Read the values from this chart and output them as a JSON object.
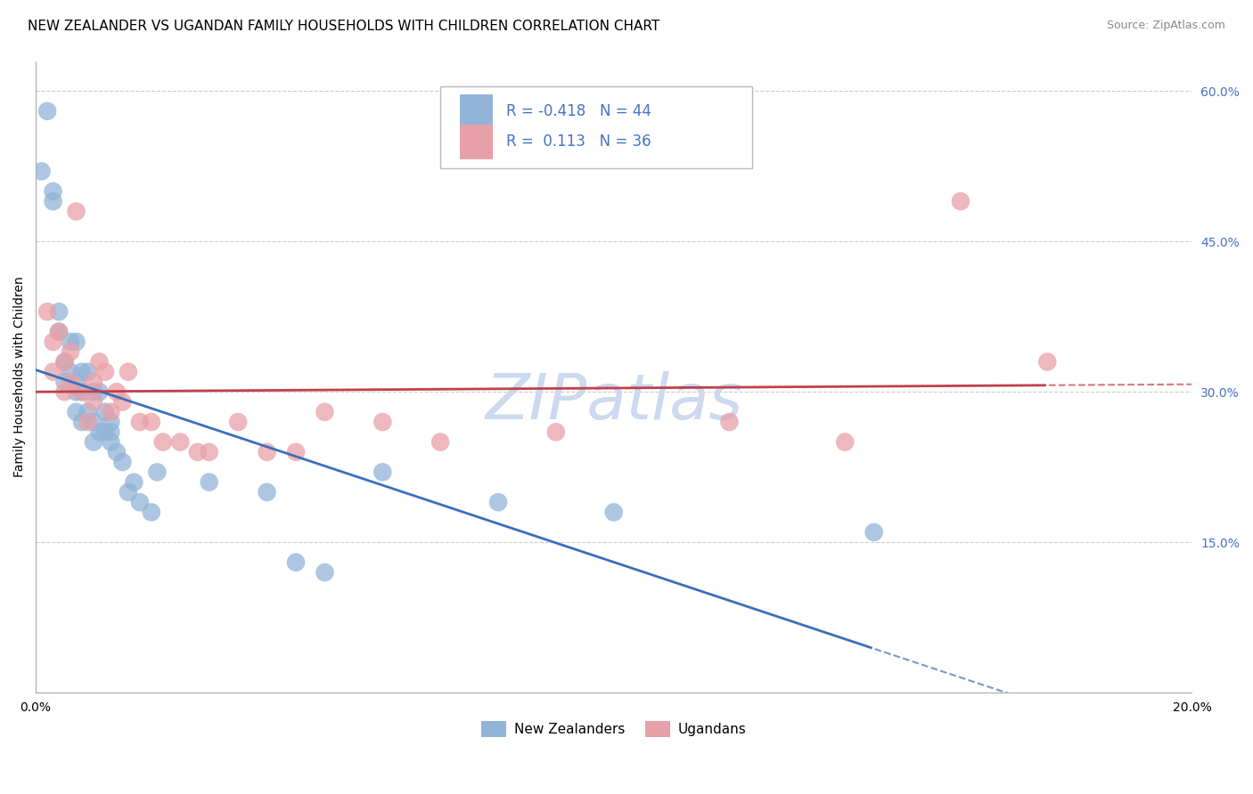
{
  "title": "NEW ZEALANDER VS UGANDAN FAMILY HOUSEHOLDS WITH CHILDREN CORRELATION CHART",
  "source": "Source: ZipAtlas.com",
  "ylabel": "Family Households with Children",
  "legend_labels": [
    "New Zealanders",
    "Ugandans"
  ],
  "r_nz": -0.418,
  "n_nz": 44,
  "r_ug": 0.113,
  "n_ug": 36,
  "color_nz": "#92b4d8",
  "color_ug": "#e8a0a8",
  "color_trend_nz": "#3a6fba",
  "color_trend_ug": "#c0404a",
  "color_axis_right": "#4472c4",
  "xlim": [
    0.0,
    0.2
  ],
  "ylim": [
    0.0,
    0.63
  ],
  "xticks": [
    0.0,
    0.025,
    0.05,
    0.075,
    0.1,
    0.125,
    0.15,
    0.175,
    0.2
  ],
  "yticks_right": [
    0.15,
    0.3,
    0.45,
    0.6
  ],
  "ytick_right_labels": [
    "15.0%",
    "30.0%",
    "45.0%",
    "60.0%"
  ],
  "nz_x": [
    0.001,
    0.002,
    0.003,
    0.003,
    0.004,
    0.004,
    0.005,
    0.005,
    0.006,
    0.006,
    0.007,
    0.007,
    0.007,
    0.007,
    0.008,
    0.008,
    0.008,
    0.009,
    0.009,
    0.01,
    0.01,
    0.01,
    0.011,
    0.011,
    0.012,
    0.012,
    0.013,
    0.013,
    0.013,
    0.014,
    0.015,
    0.016,
    0.017,
    0.018,
    0.02,
    0.021,
    0.03,
    0.04,
    0.045,
    0.05,
    0.06,
    0.08,
    0.1,
    0.145
  ],
  "nz_y": [
    0.52,
    0.58,
    0.49,
    0.5,
    0.38,
    0.36,
    0.33,
    0.31,
    0.35,
    0.32,
    0.35,
    0.31,
    0.3,
    0.28,
    0.32,
    0.3,
    0.27,
    0.32,
    0.28,
    0.3,
    0.27,
    0.25,
    0.3,
    0.26,
    0.28,
    0.26,
    0.27,
    0.26,
    0.25,
    0.24,
    0.23,
    0.2,
    0.21,
    0.19,
    0.18,
    0.22,
    0.21,
    0.2,
    0.13,
    0.12,
    0.22,
    0.19,
    0.18,
    0.16
  ],
  "ug_x": [
    0.002,
    0.003,
    0.003,
    0.004,
    0.005,
    0.005,
    0.006,
    0.006,
    0.007,
    0.008,
    0.009,
    0.01,
    0.01,
    0.011,
    0.012,
    0.013,
    0.014,
    0.015,
    0.016,
    0.018,
    0.02,
    0.022,
    0.025,
    0.028,
    0.03,
    0.035,
    0.04,
    0.045,
    0.05,
    0.06,
    0.07,
    0.09,
    0.12,
    0.14,
    0.16,
    0.175
  ],
  "ug_y": [
    0.38,
    0.35,
    0.32,
    0.36,
    0.33,
    0.3,
    0.34,
    0.31,
    0.48,
    0.3,
    0.27,
    0.31,
    0.29,
    0.33,
    0.32,
    0.28,
    0.3,
    0.29,
    0.32,
    0.27,
    0.27,
    0.25,
    0.25,
    0.24,
    0.24,
    0.27,
    0.24,
    0.24,
    0.28,
    0.27,
    0.25,
    0.26,
    0.27,
    0.25,
    0.49,
    0.33
  ],
  "background_color": "#ffffff",
  "grid_color": "#cccccc",
  "title_fontsize": 11,
  "axis_label_fontsize": 10,
  "tick_fontsize": 10,
  "source_fontsize": 9,
  "watermark": "ZIPatlas",
  "watermark_color": "#ccd9ee",
  "watermark_fontsize": 52
}
